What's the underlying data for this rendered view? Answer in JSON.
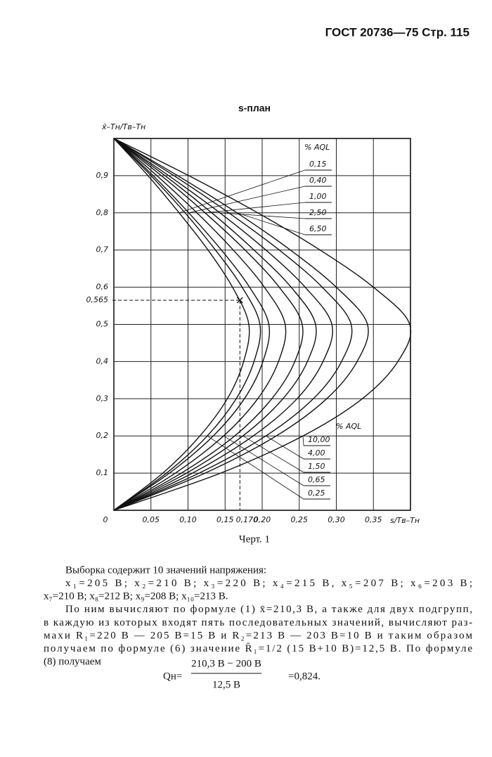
{
  "header": {
    "title": "ГОСТ 20736—75 Стр. 115"
  },
  "chart_data": {
    "type": "curves",
    "title": "s-план",
    "y_axis_label": "x̄–Tн/Tв–Tн",
    "x_axis_label": "s/Tв–Tн",
    "aql_label": "% AQL",
    "y": [
      1,
      0.9,
      0.8,
      0.7,
      0.6,
      0.5,
      0.4,
      0.3,
      0.2,
      0.1,
      0
    ],
    "series": [
      {
        "name": "0,15",
        "color": "#111",
        "values": [
          0,
          0.046,
          0.088,
          0.127,
          0.16,
          0.182,
          0.175,
          0.153,
          0.116,
          0.066,
          0
        ]
      },
      {
        "name": "0,25",
        "color": "#111",
        "values": [
          0,
          0.05,
          0.096,
          0.137,
          0.173,
          0.197,
          0.189,
          0.165,
          0.126,
          0.071,
          0
        ]
      },
      {
        "name": "0,40",
        "color": "#111",
        "values": [
          0,
          0.053,
          0.101,
          0.145,
          0.183,
          0.209,
          0.201,
          0.176,
          0.134,
          0.075,
          0
        ]
      },
      {
        "name": "0,65",
        "color": "#111",
        "values": [
          0,
          0.058,
          0.112,
          0.161,
          0.203,
          0.231,
          0.222,
          0.194,
          0.148,
          0.083,
          0
        ]
      },
      {
        "name": "1,00",
        "color": "#111",
        "values": [
          0,
          0.064,
          0.123,
          0.177,
          0.223,
          0.254,
          0.244,
          0.213,
          0.163,
          0.091,
          0
        ]
      },
      {
        "name": "1,50",
        "color": "#111",
        "values": [
          0,
          0.069,
          0.132,
          0.189,
          0.239,
          0.272,
          0.261,
          0.228,
          0.174,
          0.098,
          0
        ]
      },
      {
        "name": "2,50",
        "color": "#111",
        "values": [
          0,
          0.074,
          0.143,
          0.205,
          0.258,
          0.294,
          0.282,
          0.247,
          0.188,
          0.106,
          0
        ]
      },
      {
        "name": "4,00",
        "color": "#111",
        "values": [
          0,
          0.081,
          0.155,
          0.223,
          0.281,
          0.32,
          0.307,
          0.269,
          0.205,
          0.115,
          0
        ]
      },
      {
        "name": "6,50",
        "color": "#111",
        "values": [
          0,
          0.086,
          0.166,
          0.238,
          0.3,
          0.342,
          0.328,
          0.287,
          0.219,
          0.123,
          0
        ]
      },
      {
        "name": "10,00",
        "color": "#111",
        "values": [
          0,
          0.101,
          0.194,
          0.278,
          0.35,
          0.399,
          0.383,
          0.335,
          0.255,
          0.144,
          0
        ]
      }
    ],
    "upper_labels": [
      0,
      2,
      4,
      6,
      8
    ],
    "lower_labels": [
      9,
      7,
      5,
      3,
      1
    ],
    "marker": {
      "x": 0.17,
      "y": 0.565,
      "x_label": "0,170",
      "y_label": "0,565"
    },
    "xlim": [
      0,
      0.4
    ],
    "ylim": [
      0,
      1
    ],
    "xticks": [
      {
        "value": 0,
        "label": "0"
      },
      {
        "value": 0.05,
        "label": "0,05"
      },
      {
        "value": 0.1,
        "label": "0,10"
      },
      {
        "value": 0.15,
        "label": "0,15"
      },
      {
        "value": 0.2,
        "label": "0,20"
      },
      {
        "value": 0.25,
        "label": "0,25"
      },
      {
        "value": 0.3,
        "label": "0,30"
      },
      {
        "value": 0.35,
        "label": "0,35"
      }
    ],
    "yticks": [
      {
        "value": 0.1,
        "label": "0,1"
      },
      {
        "value": 0.2,
        "label": "0,2"
      },
      {
        "value": 0.3,
        "label": "0,3"
      },
      {
        "value": 0.4,
        "label": "0,4"
      },
      {
        "value": 0.5,
        "label": "0,5"
      },
      {
        "value": 0.6,
        "label": "0,6"
      },
      {
        "value": 0.7,
        "label": "0,7"
      },
      {
        "value": 0.8,
        "label": "0,8"
      },
      {
        "value": 0.9,
        "label": "0,9"
      }
    ],
    "grid": true
  },
  "caption": "Черт. 1",
  "text": {
    "lines": [
      "Выборка содержит 10 значений напряжения:",
      "x₁=205 В;   x₂=210 В;   x₃=220 В;   x₄=215 В,   x₅=207 В;   x₆=203 В;",
      "x₇=210 В; x₈=212 В; x₉=208 В; x₁₀=213 В.",
      "По ним вычисляют по формуле (1) x̄=210,3 В, а также для двух подгрупп,",
      "в каждую из которых входят пять последовательных значений, вычисляют раз-",
      "махи R₁=220 В — 205 В=15 В  и  R₂=213 В — 203 В=10 В и таким образом",
      "получаем по формуле (6) значение R̄₁=1/2 (15 В+10 В)=12,5 В.  По  формуле",
      "(8) получаем"
    ],
    "formula": {
      "lhs": "Qн=",
      "numerator": "210,3 В − 200 В",
      "denominator": "12,5 В",
      "result": "=0,824."
    }
  }
}
